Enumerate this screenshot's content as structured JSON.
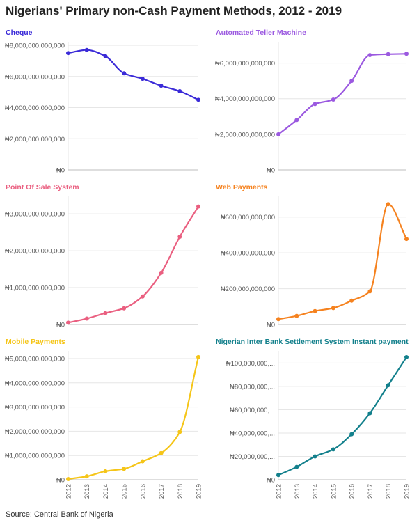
{
  "title": "Nigerians' Primary non-Cash Payment Methods, 2012 - 2019",
  "source": "Source: Central Bank of Nigeria",
  "chart_data": [
    {
      "type": "line",
      "title": "Cheque",
      "color": "#3b2bd8",
      "x": [
        "2012",
        "2013",
        "2014",
        "2015",
        "2016",
        "2017",
        "2018",
        "2019"
      ],
      "values": [
        7500000000000,
        7700000000000,
        7300000000000,
        6200000000000,
        5850000000000,
        5400000000000,
        5050000000000,
        4500000000000
      ],
      "ylim": [
        0,
        8000000000000
      ],
      "yticks": [
        0,
        2000000000000,
        4000000000000,
        6000000000000,
        8000000000000
      ],
      "yticklabels": [
        "₦0",
        "₦2,000,000,000,000",
        "₦4,000,000,000,000",
        "₦6,000,000,000,000",
        "₦8,000,000,000,000"
      ]
    },
    {
      "type": "line",
      "title": "Automated Teller Machine",
      "color": "#9b59e0",
      "x": [
        "2012",
        "2013",
        "2014",
        "2015",
        "2016",
        "2017",
        "2018",
        "2019"
      ],
      "values": [
        2000000000000,
        2800000000000,
        3700000000000,
        3950000000000,
        5000000000000,
        6450000000000,
        6500000000000,
        6520000000000
      ],
      "ylim": [
        0,
        7000000000000
      ],
      "yticks": [
        0,
        2000000000000,
        4000000000000,
        6000000000000
      ],
      "yticklabels": [
        "₦0",
        "₦2,000,000,000,000",
        "₦4,000,000,000,000",
        "₦6,000,000,000,000"
      ]
    },
    {
      "type": "line",
      "title": "Point Of Sale System",
      "color": "#ea5f80",
      "x": [
        "2012",
        "2013",
        "2014",
        "2015",
        "2016",
        "2017",
        "2018",
        "2019"
      ],
      "values": [
        50000000000,
        160000000000,
        310000000000,
        440000000000,
        760000000000,
        1400000000000,
        2380000000000,
        3200000000000
      ],
      "ylim": [
        0,
        3400000000000
      ],
      "yticks": [
        0,
        1000000000000,
        2000000000000,
        3000000000000
      ],
      "yticklabels": [
        "₦0",
        "₦1,000,000,000,000",
        "₦2,000,000,000,000",
        "₦3,000,000,000,000"
      ]
    },
    {
      "type": "line",
      "title": "Web Payments",
      "color": "#f5821f",
      "x": [
        "2012",
        "2013",
        "2014",
        "2015",
        "2016",
        "2017",
        "2018",
        "2019"
      ],
      "values": [
        30000000000,
        48000000000,
        75000000000,
        92000000000,
        133000000000,
        185000000000,
        672000000000,
        478000000000
      ],
      "ylim": [
        0,
        700000000000
      ],
      "yticks": [
        0,
        200000000000,
        400000000000,
        600000000000
      ],
      "yticklabels": [
        "₦0",
        "₦200,000,000,000",
        "₦400,000,000,000",
        "₦600,000,000,000"
      ]
    },
    {
      "type": "line",
      "title": "Mobile Payments",
      "color": "#f5c518",
      "x": [
        "2012",
        "2013",
        "2014",
        "2015",
        "2016",
        "2017",
        "2018",
        "2019"
      ],
      "values": [
        30000000000,
        140000000000,
        350000000000,
        450000000000,
        760000000000,
        1100000000000,
        1970000000000,
        5060000000000
      ],
      "ylim": [
        0,
        5200000000000
      ],
      "yticks": [
        0,
        1000000000000,
        2000000000000,
        3000000000000,
        4000000000000,
        5000000000000
      ],
      "yticklabels": [
        "₦0",
        "₦1,000,000,000,000",
        "₦2,000,000,000,000",
        "₦3,000,000,000,000",
        "₦4,000,000,000,000",
        "₦5,000,000,000,000"
      ]
    },
    {
      "type": "line",
      "title": "Nigerian Inter Bank Settlement System Instant payment",
      "color": "#13808c",
      "x": [
        "2012",
        "2013",
        "2014",
        "2015",
        "2016",
        "2017",
        "2018",
        "2019"
      ],
      "values": [
        4000000000000,
        11000000000000,
        20000000000000,
        26000000000000,
        39000000000000,
        57000000000000,
        81000000000000,
        105000000000000
      ],
      "ylim": [
        0,
        108000000000000
      ],
      "yticks": [
        0,
        20000000000000,
        40000000000000,
        60000000000000,
        80000000000000,
        100000000000000
      ],
      "yticklabels": [
        "₦0",
        "₦20,000,000,...",
        "₦40,000,000,...",
        "₦60,000,000,...",
        "₦80,000,000,...",
        "₦100,000,000,..."
      ]
    }
  ]
}
